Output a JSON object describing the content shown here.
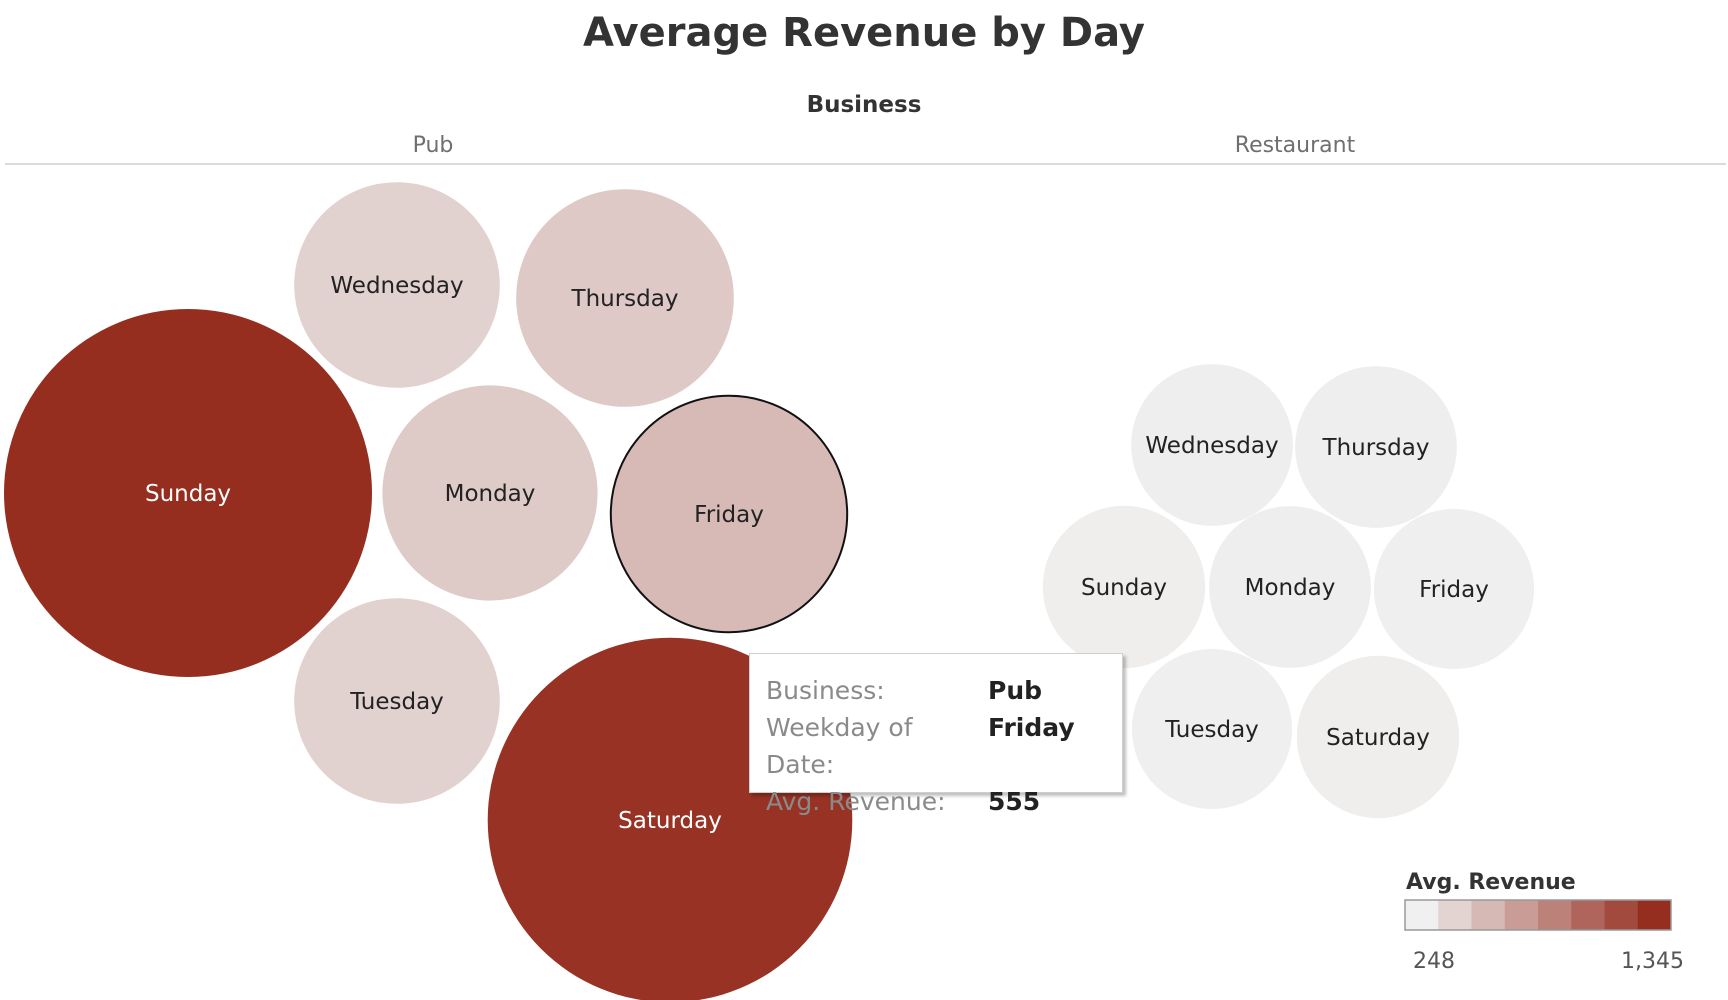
{
  "chart_data": {
    "type": "bubble",
    "title": "Average Revenue by Day",
    "column_header": "Business",
    "panels": [
      {
        "name": "Pub",
        "points": [
          {
            "day": "Wednesday",
            "value": 420
          },
          {
            "day": "Thursday",
            "value": 470
          },
          {
            "day": "Sunday",
            "value": 1345
          },
          {
            "day": "Monday",
            "value": 460
          },
          {
            "day": "Friday",
            "value": 555
          },
          {
            "day": "Tuesday",
            "value": 420
          },
          {
            "day": "Saturday",
            "value": 1320
          }
        ]
      },
      {
        "name": "Restaurant",
        "points": [
          {
            "day": "Wednesday",
            "value": 260
          },
          {
            "day": "Thursday",
            "value": 260
          },
          {
            "day": "Sunday",
            "value": 262
          },
          {
            "day": "Monday",
            "value": 260
          },
          {
            "day": "Friday",
            "value": 255
          },
          {
            "day": "Tuesday",
            "value": 255
          },
          {
            "day": "Saturday",
            "value": 262
          }
        ]
      }
    ],
    "legend": {
      "title": "Avg. Revenue",
      "min": 248,
      "max": 1345,
      "min_label": "248",
      "max_label": "1,345",
      "steps": 8,
      "color_low": "#f0f0f0",
      "color_high": "#952e1f"
    },
    "highlighted": {
      "panel": "Pub",
      "day": "Friday"
    }
  },
  "tooltip": {
    "rows": [
      {
        "key": "Business:",
        "value": "Pub"
      },
      {
        "key": "Weekday of Date:",
        "value": "Friday"
      },
      {
        "key": "Avg. Revenue:",
        "value": "555"
      }
    ]
  }
}
